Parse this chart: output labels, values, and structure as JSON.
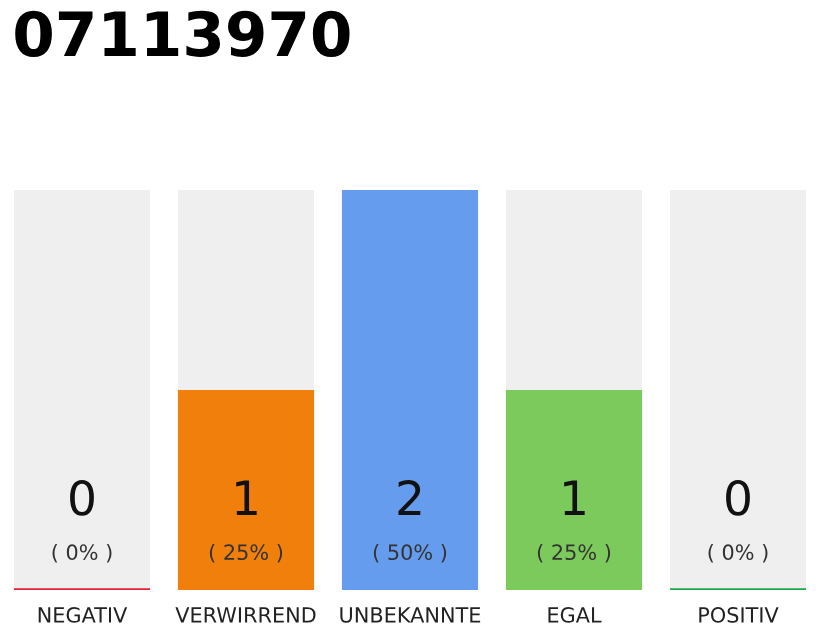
{
  "chart_data": {
    "type": "bar",
    "title": "07113970",
    "categories": [
      "NEGATIV",
      "VERWIRREND",
      "UNBEKANNTE",
      "EGAL",
      "POSITIV"
    ],
    "values": [
      0,
      1,
      2,
      1,
      0
    ],
    "colors": [
      "#e8203c",
      "#f07f0c",
      "#659ced",
      "#7cca5c",
      "#1ea84a"
    ],
    "ylim": [
      0,
      2
    ],
    "tick_labels": "x",
    "grid": false,
    "data_labels": true,
    "annotations": [
      "( 0% )",
      "( 25% )",
      "( 50% )",
      "( 25% )",
      "( 0% )"
    ]
  }
}
